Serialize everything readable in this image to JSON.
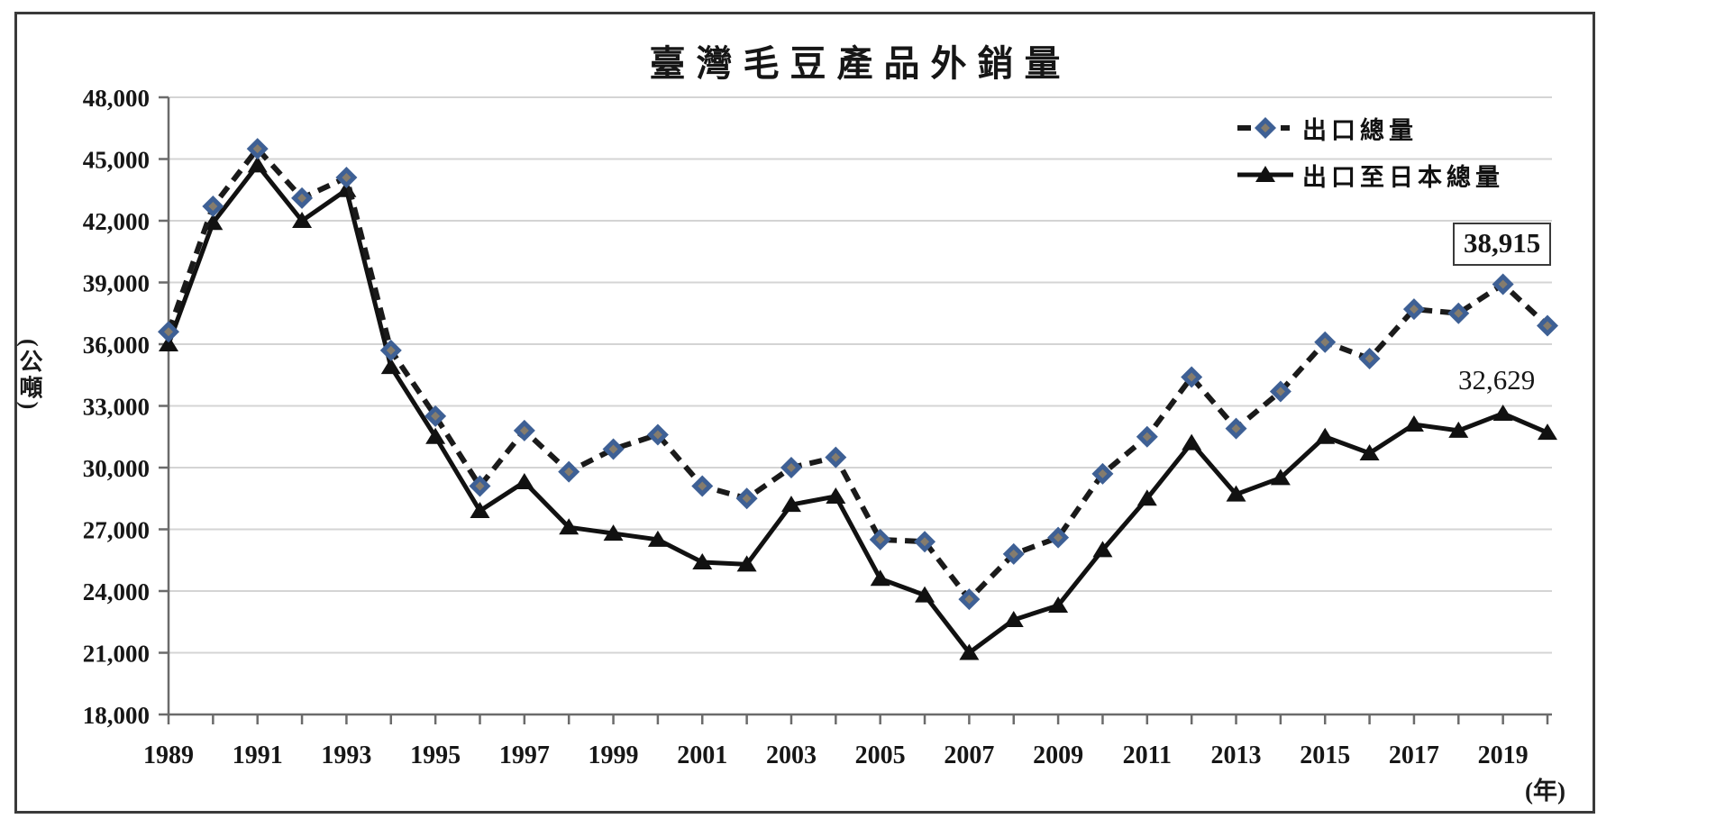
{
  "chart_data": {
    "type": "line",
    "title": "臺灣毛豆產品外銷量",
    "y_axis_unit_label": "(公噸)",
    "x_axis_unit_label": "(年)",
    "ylim": [
      18000,
      48000
    ],
    "ytick_step": 3000,
    "y_tick_labels": [
      "18,000",
      "21,000",
      "24,000",
      "27,000",
      "30,000",
      "33,000",
      "36,000",
      "39,000",
      "42,000",
      "45,000",
      "48,000"
    ],
    "x": [
      1989,
      1990,
      1991,
      1992,
      1993,
      1994,
      1995,
      1996,
      1997,
      1998,
      1999,
      2000,
      2001,
      2002,
      2003,
      2004,
      2005,
      2006,
      2007,
      2008,
      2009,
      2010,
      2011,
      2012,
      2013,
      2014,
      2015,
      2016,
      2017,
      2018,
      2019,
      2020
    ],
    "x_tick_labels": [
      "1989",
      "1991",
      "1993",
      "1995",
      "1997",
      "1999",
      "2001",
      "2003",
      "2005",
      "2007",
      "2009",
      "2011",
      "2013",
      "2015",
      "2017",
      "2019"
    ],
    "grid": true,
    "legend_position": "top-right-inside",
    "series": [
      {
        "name": "出口總量",
        "line_style": "dashed",
        "marker": "diamond",
        "values": [
          36600,
          42700,
          45500,
          43100,
          44100,
          35700,
          32500,
          29100,
          31800,
          29800,
          30900,
          31600,
          29100,
          28500,
          30000,
          30500,
          26500,
          26400,
          23600,
          25800,
          26600,
          29700,
          31500,
          34400,
          31900,
          33700,
          36100,
          35300,
          37700,
          37500,
          38915,
          36900
        ]
      },
      {
        "name": "出口至日本總量",
        "line_style": "solid",
        "marker": "triangle",
        "values": [
          36000,
          41900,
          44700,
          42000,
          43500,
          34900,
          31500,
          27900,
          29300,
          27100,
          26800,
          26500,
          25400,
          25300,
          28200,
          28600,
          24600,
          23800,
          21000,
          22600,
          23300,
          26000,
          28500,
          31200,
          28700,
          29500,
          31500,
          30700,
          32100,
          31800,
          32629,
          31700
        ]
      }
    ],
    "annotations": [
      {
        "text": "38,915",
        "series": "出口總量",
        "year": 2019,
        "boxed": true
      },
      {
        "text": "32,629",
        "series": "出口至日本總量",
        "year": 2019,
        "boxed": false
      }
    ],
    "colors": {
      "line": "#1a1a1a",
      "diamond_outer": "#3e6095",
      "diamond_inner": "#857c6d",
      "triangle": "#111111",
      "gridline": "#d4d4d4",
      "axis": "#6b6b6b",
      "frame_border": "#3a3a3a",
      "background": "#ffffff"
    }
  }
}
